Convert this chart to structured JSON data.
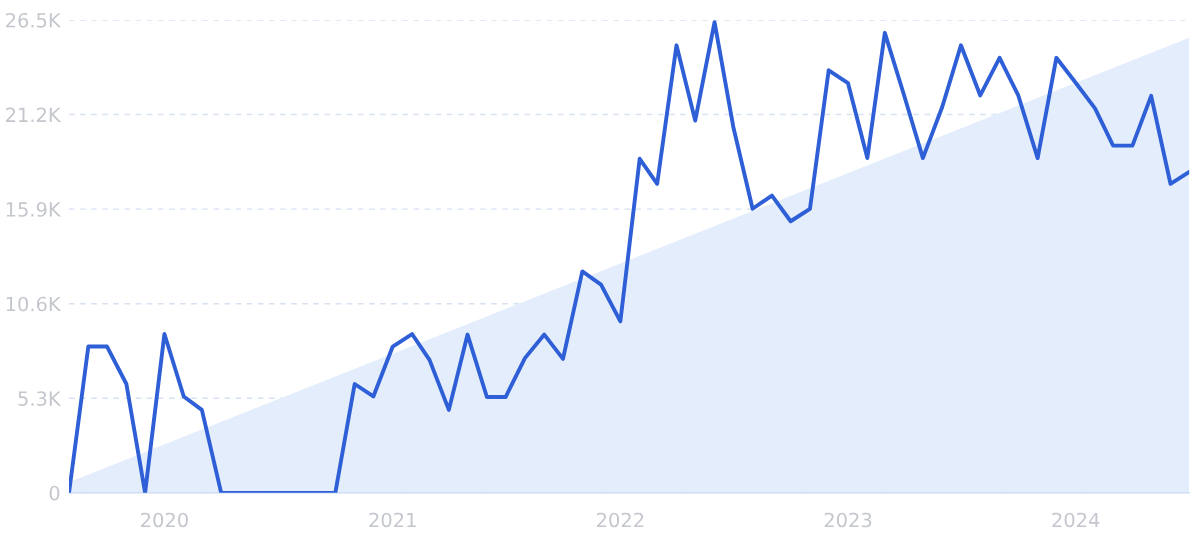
{
  "chart_data": {
    "type": "line",
    "x": [
      "2019-08",
      "2019-09",
      "2019-10",
      "2019-11",
      "2019-12",
      "2020-01",
      "2020-02",
      "2020-03",
      "2020-04",
      "2020-05",
      "2020-06",
      "2020-07",
      "2020-08",
      "2020-09",
      "2020-10",
      "2020-11",
      "2020-12",
      "2021-01",
      "2021-02",
      "2021-03",
      "2021-04",
      "2021-05",
      "2021-06",
      "2021-07",
      "2021-08",
      "2021-09",
      "2021-10",
      "2021-11",
      "2021-12",
      "2022-01",
      "2022-02",
      "2022-03",
      "2022-04",
      "2022-05",
      "2022-06",
      "2022-07",
      "2022-08",
      "2022-09",
      "2022-10",
      "2022-11",
      "2022-12",
      "2023-01",
      "2023-02",
      "2023-03",
      "2023-04",
      "2023-05",
      "2023-06",
      "2023-07",
      "2023-08",
      "2023-09",
      "2023-10",
      "2023-11",
      "2023-12",
      "2024-01",
      "2024-02",
      "2024-03",
      "2024-04",
      "2024-05",
      "2024-06",
      "2024-07"
    ],
    "series": [
      {
        "type": "area",
        "color": "#e3edfb",
        "x": [
          "2019-08",
          "2024-07"
        ],
        "values": [
          600,
          25500
        ]
      },
      {
        "color": "#2f5fd6",
        "values": [
          0,
          8200,
          8200,
          6100,
          0,
          8900,
          5400,
          4650,
          0,
          0,
          0,
          0,
          0,
          0,
          0,
          6100,
          5400,
          8200,
          8900,
          7450,
          4650,
          8870,
          5370,
          5370,
          7550,
          8870,
          7510,
          12410,
          11670,
          9610,
          18720,
          17320,
          25080,
          20860,
          26380,
          20520,
          15920,
          16660,
          15220,
          15920,
          23680,
          22960,
          18760,
          25780,
          22270,
          18760,
          21620,
          25080,
          22270,
          24380,
          22270,
          18760,
          24380,
          22980,
          21550,
          19460,
          19460,
          22250,
          17320,
          17980
        ]
      }
    ],
    "xlim": [
      "2019-08",
      "2024-07"
    ],
    "xticks": [
      {
        "value": "2020-01",
        "label": "2020"
      },
      {
        "value": "2021-01",
        "label": "2021"
      },
      {
        "value": "2022-01",
        "label": "2022"
      },
      {
        "value": "2023-01",
        "label": "2023"
      },
      {
        "value": "2024-01",
        "label": "2024"
      }
    ],
    "ylim": [
      0,
      26500
    ],
    "yticks": [
      0,
      {
        "value": 5300,
        "label": "5.3K"
      },
      {
        "value": 10600,
        "label": "10.6K"
      },
      {
        "value": 15900,
        "label": "15.9K"
      },
      {
        "value": 21200,
        "label": "21.2K"
      },
      {
        "value": 26500,
        "label": "26.5K"
      }
    ],
    "grid": "y",
    "line_style": "solid"
  }
}
